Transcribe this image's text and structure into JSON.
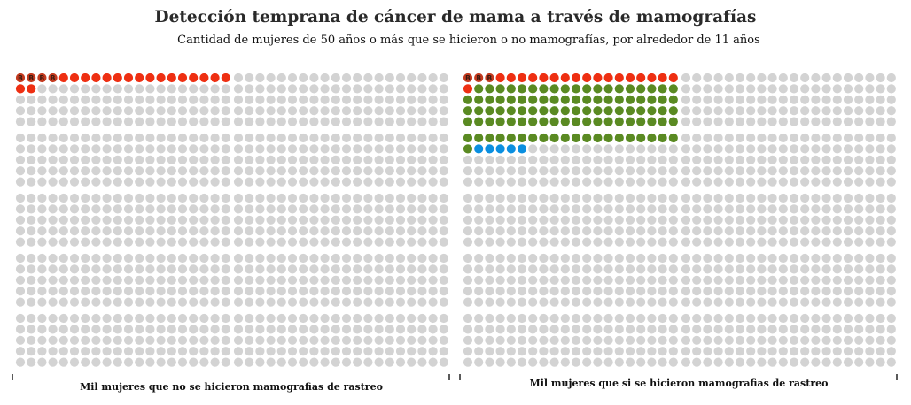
{
  "chart_data": {
    "type": "waffle",
    "title": "Detección temprana de cáncer de mama a través de mamografías",
    "subtitle": "Cantidad de mujeres de 50 años o más que se hicieron o no mamografías, por alrededor de 11 años",
    "unit_per_dot": 1,
    "total_per_panel": 1000,
    "marker_glyph": "B",
    "panels": [
      {
        "label": "Mil mujeres que no se hicieron mamografias de rastreo",
        "segments": [
          {
            "count": 4,
            "color": "#c33a1f",
            "marked": true
          },
          {
            "count": 16,
            "color": "#ee2f12",
            "marked": false
          },
          {
            "count": 2,
            "color": "#ee2f12",
            "marked": false
          },
          {
            "count": 978,
            "color": "#d3d3d3",
            "marked": false
          }
        ]
      },
      {
        "label": "Mil mujeres que si se hicieron mamografias de rastreo",
        "segments": [
          {
            "count": 3,
            "color": "#c33a1f",
            "marked": true
          },
          {
            "count": 17,
            "color": "#ee2f12",
            "marked": false
          },
          {
            "count": 1,
            "color": "#ee2f12",
            "marked": false
          },
          {
            "count": 100,
            "color": "#5a8a22",
            "marked": false
          },
          {
            "count": 5,
            "color": "#0a8fe0",
            "marked": false
          },
          {
            "count": 874,
            "color": "#d3d3d3",
            "marked": false
          }
        ]
      }
    ]
  }
}
